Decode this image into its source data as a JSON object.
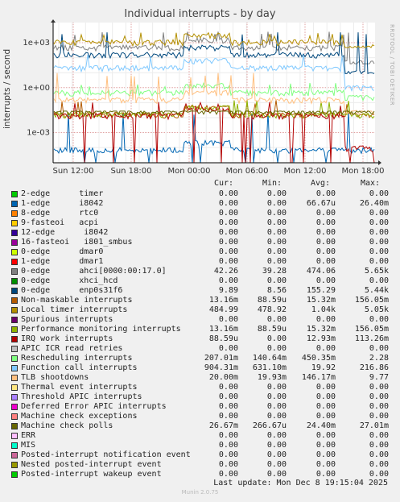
{
  "title": "Individual interrupts - by day",
  "side_text": "RRDTOOL / TOBI OETIKER",
  "footer": {
    "last_update": "Last update: Mon Dec  8 19:15:04 2025",
    "version": "Munin 2.0.75"
  },
  "chart_data": {
    "type": "line",
    "title": "Individual interrupts - by day",
    "ylabel": "interrupts / second",
    "yscale": "log",
    "y_ticks": [
      0.001,
      1,
      1000
    ],
    "y_tick_labels": [
      "1e-03",
      "1e+00",
      "1e+03"
    ],
    "x_tick_labels": [
      "Sun 12:00",
      "Sun 18:00",
      "Mon 00:00",
      "Mon 06:00",
      "Mon 12:00",
      "Mon 18:00"
    ],
    "grid": true,
    "legend_columns": [
      "Cur:",
      "Min:",
      "Avg:",
      "Max:"
    ],
    "series": [
      {
        "name": "2-edge      timer",
        "color": "#00cc00",
        "cur": "0.00",
        "min": "0.00",
        "avg": "0.00",
        "max": "0.00"
      },
      {
        "name": "1-edge      i8042",
        "color": "#0066b3",
        "cur": "0.00",
        "min": "0.00",
        "avg": "66.67u",
        "max": "26.40m"
      },
      {
        "name": "8-edge      rtc0",
        "color": "#ff8000",
        "cur": "0.00",
        "min": "0.00",
        "avg": "0.00",
        "max": "0.00"
      },
      {
        "name": "9-fasteoi   acpi",
        "color": "#ffcc00",
        "cur": "0.00",
        "min": "0.00",
        "avg": "0.00",
        "max": "0.00"
      },
      {
        "name": "12-edge      i8042",
        "color": "#330099",
        "cur": "0.00",
        "min": "0.00",
        "avg": "0.00",
        "max": "0.00"
      },
      {
        "name": "16-fasteoi   i801_smbus",
        "color": "#990099",
        "cur": "0.00",
        "min": "0.00",
        "avg": "0.00",
        "max": "0.00"
      },
      {
        "name": "0-edge      dmar0",
        "color": "#ccff00",
        "cur": "0.00",
        "min": "0.00",
        "avg": "0.00",
        "max": "0.00"
      },
      {
        "name": "1-edge      dmar1",
        "color": "#ff0000",
        "cur": "0.00",
        "min": "0.00",
        "avg": "0.00",
        "max": "0.00"
      },
      {
        "name": "0-edge      ahci[0000:00:17.0]",
        "color": "#808080",
        "cur": "42.26",
        "min": "39.28",
        "avg": "474.06",
        "max": "5.65k"
      },
      {
        "name": "0-edge      xhci_hcd",
        "color": "#008f00",
        "cur": "0.00",
        "min": "0.00",
        "avg": "0.00",
        "max": "0.00"
      },
      {
        "name": "0-edge      enp0s31f6",
        "color": "#00487d",
        "cur": "9.89",
        "min": "8.56",
        "avg": "155.29",
        "max": "5.44k"
      },
      {
        "name": "Non-maskable interrupts",
        "color": "#b35a00",
        "cur": "13.16m",
        "min": "88.59u",
        "avg": "15.32m",
        "max": "156.05m"
      },
      {
        "name": "Local timer interrupts",
        "color": "#b38f00",
        "cur": "484.99",
        "min": "478.92",
        "avg": "1.04k",
        "max": "5.05k"
      },
      {
        "name": "Spurious interrupts",
        "color": "#6b006b",
        "cur": "0.00",
        "min": "0.00",
        "avg": "0.00",
        "max": "0.00"
      },
      {
        "name": "Performance monitoring interrupts",
        "color": "#8fb300",
        "cur": "13.16m",
        "min": "88.59u",
        "avg": "15.32m",
        "max": "156.05m"
      },
      {
        "name": "IRQ work interrupts",
        "color": "#b30000",
        "cur": "88.59u",
        "min": "0.00",
        "avg": "12.93m",
        "max": "113.26m"
      },
      {
        "name": "APIC ICR read retries",
        "color": "#bebebe",
        "cur": "0.00",
        "min": "0.00",
        "avg": "0.00",
        "max": "0.00"
      },
      {
        "name": "Rescheduling interrupts",
        "color": "#80ff80",
        "cur": "207.01m",
        "min": "140.64m",
        "avg": "450.35m",
        "max": "2.28"
      },
      {
        "name": "Function call interrupts",
        "color": "#80c9ff",
        "cur": "904.31m",
        "min": "631.10m",
        "avg": "19.92",
        "max": "216.86"
      },
      {
        "name": "TLB shootdowns",
        "color": "#ffc080",
        "cur": "20.00m",
        "min": "19.93m",
        "avg": "146.17m",
        "max": "9.77"
      },
      {
        "name": "Thermal event interrupts",
        "color": "#ffe680",
        "cur": "0.00",
        "min": "0.00",
        "avg": "0.00",
        "max": "0.00"
      },
      {
        "name": "Threshold APIC interrupts",
        "color": "#aa80ff",
        "cur": "0.00",
        "min": "0.00",
        "avg": "0.00",
        "max": "0.00"
      },
      {
        "name": "Deferred Error APIC interrupts",
        "color": "#ee00cc",
        "cur": "0.00",
        "min": "0.00",
        "avg": "0.00",
        "max": "0.00"
      },
      {
        "name": "Machine check exceptions",
        "color": "#ff8080",
        "cur": "0.00",
        "min": "0.00",
        "avg": "0.00",
        "max": "0.00"
      },
      {
        "name": "Machine check polls",
        "color": "#666600",
        "cur": "26.67m",
        "min": "266.67u",
        "avg": "24.40m",
        "max": "27.01m"
      },
      {
        "name": "ERR",
        "color": "#ffbfff",
        "cur": "0.00",
        "min": "0.00",
        "avg": "0.00",
        "max": "0.00"
      },
      {
        "name": "MIS",
        "color": "#00ffcc",
        "cur": "0.00",
        "min": "0.00",
        "avg": "0.00",
        "max": "0.00"
      },
      {
        "name": "Posted-interrupt notification event",
        "color": "#cc6699",
        "cur": "0.00",
        "min": "0.00",
        "avg": "0.00",
        "max": "0.00"
      },
      {
        "name": "Nested posted-interrupt event",
        "color": "#999900",
        "cur": "0.00",
        "min": "0.00",
        "avg": "0.00",
        "max": "0.00"
      },
      {
        "name": "Posted-interrupt wakeup event",
        "color": "#00cc00",
        "cur": "0.00",
        "min": "0.00",
        "avg": "0.00",
        "max": "0.00"
      }
    ]
  }
}
